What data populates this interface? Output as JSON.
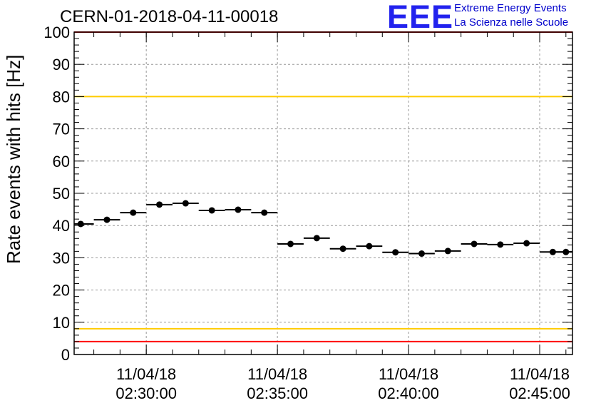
{
  "header": {
    "title": "CERN-01-2018-04-11-00018",
    "logo_mark": "EEE",
    "logo_line1": "Extreme Energy Events",
    "logo_line2": "La Scienza nelle Scuole"
  },
  "chart_data": {
    "type": "scatter",
    "title": "CERN-01-2018-04-11-00018",
    "xlabel": "",
    "ylabel": "Rate events with hits [Hz]",
    "ylim": [
      0,
      100
    ],
    "yticks": [
      "0",
      "10",
      "20",
      "30",
      "40",
      "50",
      "60",
      "70",
      "80",
      "90",
      "100"
    ],
    "xlim": [
      "02:27:15",
      "02:46:15"
    ],
    "x_tick_labels": [
      {
        "time": "02:30:00",
        "date": "11/04/18"
      },
      {
        "time": "02:35:00",
        "date": "11/04/18"
      },
      {
        "time": "02:40:00",
        "date": "11/04/18"
      },
      {
        "time": "02:45:00",
        "date": "11/04/18"
      }
    ],
    "grid": true,
    "bin_width_seconds": 60,
    "series": [
      {
        "x": [
          "02:27:30",
          "02:28:30",
          "02:29:30",
          "02:30:30",
          "02:31:30",
          "02:32:30",
          "02:33:30",
          "02:34:30",
          "02:35:30",
          "02:36:30",
          "02:37:30",
          "02:38:30",
          "02:39:30",
          "02:40:30",
          "02:41:30",
          "02:42:30",
          "02:43:30",
          "02:44:30",
          "02:45:30",
          "02:46:00"
        ],
        "values": [
          40.5,
          41.8,
          44.0,
          46.5,
          46.9,
          44.7,
          44.9,
          44.0,
          34.3,
          36.1,
          32.8,
          33.6,
          31.7,
          31.3,
          32.1,
          34.3,
          34.1,
          34.5,
          31.8,
          31.8
        ]
      }
    ],
    "reference_lines": [
      {
        "y": 100,
        "color": "#ff0000"
      },
      {
        "y": 80,
        "color": "#ffcc00"
      },
      {
        "y": 8,
        "color": "#ffcc00"
      },
      {
        "y": 4,
        "color": "#ff0000"
      }
    ]
  }
}
